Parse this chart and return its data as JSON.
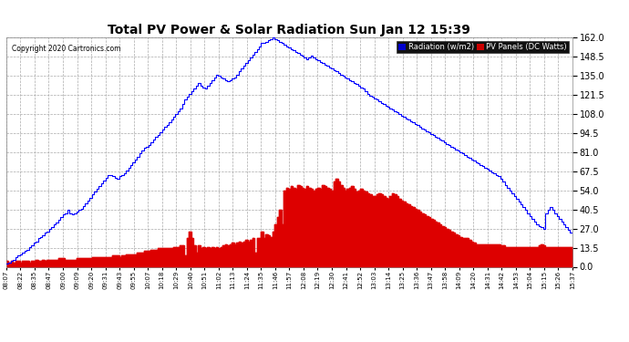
{
  "title": "Total PV Power & Solar Radiation Sun Jan 12 15:39",
  "copyright": "Copyright 2020 Cartronics.com",
  "legend_radiation": "Radiation (w/m2)",
  "legend_pv": "PV Panels (DC Watts)",
  "legend_radiation_bg": "#0000cc",
  "legend_pv_bg": "#cc0000",
  "background_color": "#ffffff",
  "plot_bg_color": "#ffffff",
  "grid_color": "#aaaaaa",
  "radiation_line_color": "#0000ff",
  "pv_fill_color": "#dd0000",
  "y_max": 162.0,
  "y_min": 0.0,
  "y_ticks": [
    0.0,
    13.5,
    27.0,
    40.5,
    54.0,
    67.5,
    81.0,
    94.5,
    108.0,
    121.5,
    135.0,
    148.5,
    162.0
  ],
  "x_labels": [
    "08:07",
    "08:22",
    "08:35",
    "08:47",
    "09:00",
    "09:09",
    "09:20",
    "09:31",
    "09:43",
    "09:55",
    "10:07",
    "10:18",
    "10:29",
    "10:40",
    "10:51",
    "11:02",
    "11:13",
    "11:24",
    "11:35",
    "11:46",
    "11:57",
    "12:08",
    "12:19",
    "12:30",
    "12:41",
    "12:52",
    "13:03",
    "13:14",
    "13:25",
    "13:36",
    "13:47",
    "13:58",
    "14:09",
    "14:20",
    "14:31",
    "14:42",
    "14:53",
    "15:04",
    "15:15",
    "15:26",
    "15:37"
  ],
  "radiation": [
    2,
    3,
    4,
    5,
    7,
    8,
    9,
    10,
    11,
    12,
    14,
    15,
    17,
    18,
    20,
    21,
    22,
    24,
    25,
    27,
    28,
    30,
    31,
    33,
    35,
    37,
    38,
    40,
    38,
    37,
    38,
    39,
    40,
    41,
    43,
    45,
    47,
    49,
    51,
    53,
    55,
    57,
    59,
    61,
    63,
    65,
    65,
    64,
    63,
    62,
    64,
    65,
    66,
    68,
    70,
    72,
    74,
    76,
    78,
    80,
    82,
    84,
    85,
    86,
    88,
    90,
    92,
    93,
    95,
    97,
    99,
    100,
    102,
    104,
    106,
    108,
    110,
    112,
    115,
    118,
    120,
    122,
    124,
    126,
    128,
    130,
    128,
    127,
    126,
    128,
    130,
    132,
    134,
    136,
    135,
    134,
    133,
    132,
    131,
    132,
    133,
    134,
    136,
    138,
    140,
    142,
    144,
    146,
    148,
    150,
    152,
    154,
    156,
    158,
    158,
    159,
    160,
    161,
    162,
    161,
    160,
    159,
    158,
    157,
    156,
    155,
    154,
    153,
    152,
    151,
    150,
    149,
    148,
    147,
    148,
    149,
    148,
    147,
    146,
    145,
    144,
    143,
    142,
    141,
    140,
    139,
    138,
    137,
    136,
    135,
    134,
    133,
    132,
    131,
    130,
    129,
    128,
    127,
    126,
    124,
    122,
    121,
    120,
    119,
    118,
    117,
    116,
    115,
    114,
    113,
    112,
    111,
    110,
    109,
    108,
    107,
    106,
    105,
    104,
    103,
    102,
    101,
    100,
    99,
    98,
    97,
    96,
    95,
    94,
    93,
    92,
    91,
    90,
    89,
    88,
    87,
    86,
    85,
    84,
    83,
    82,
    81,
    80,
    79,
    78,
    77,
    76,
    75,
    74,
    73,
    72,
    71,
    70,
    69,
    68,
    67,
    66,
    65,
    64,
    62,
    60,
    58,
    56,
    54,
    52,
    50,
    48,
    46,
    44,
    42,
    40,
    38,
    36,
    34,
    32,
    30,
    29,
    28,
    27,
    38,
    40,
    42,
    40,
    38,
    36,
    34,
    32,
    30,
    28,
    26,
    24,
    22
  ],
  "pv": [
    4,
    3,
    4,
    3,
    4,
    4,
    3,
    4,
    4,
    4,
    3,
    4,
    4,
    5,
    4,
    4,
    5,
    4,
    5,
    5,
    5,
    5,
    5,
    6,
    6,
    6,
    5,
    5,
    5,
    5,
    5,
    6,
    6,
    6,
    6,
    6,
    6,
    6,
    7,
    7,
    7,
    7,
    7,
    7,
    7,
    7,
    7,
    8,
    8,
    8,
    7,
    8,
    8,
    9,
    9,
    9,
    9,
    9,
    10,
    10,
    10,
    11,
    11,
    11,
    12,
    12,
    12,
    13,
    13,
    13,
    13,
    13,
    13,
    13,
    14,
    14,
    14,
    15,
    15,
    8,
    20,
    25,
    20,
    15,
    10,
    15,
    13,
    14,
    13,
    14,
    13,
    14,
    13,
    14,
    13,
    14,
    15,
    16,
    15,
    16,
    17,
    16,
    17,
    18,
    17,
    18,
    19,
    18,
    19,
    20,
    10,
    20,
    20,
    25,
    20,
    23,
    22,
    21,
    25,
    30,
    35,
    40,
    30,
    54,
    56,
    55,
    57,
    56,
    55,
    58,
    57,
    56,
    55,
    57,
    56,
    55,
    54,
    55,
    56,
    55,
    58,
    57,
    56,
    55,
    54,
    60,
    62,
    60,
    58,
    56,
    54,
    55,
    56,
    57,
    55,
    53,
    54,
    55,
    54,
    53,
    52,
    51,
    50,
    50,
    51,
    52,
    51,
    50,
    49,
    48,
    50,
    52,
    51,
    50,
    48,
    47,
    46,
    45,
    44,
    43,
    42,
    41,
    40,
    39,
    38,
    37,
    36,
    35,
    34,
    33,
    32,
    31,
    30,
    29,
    28,
    27,
    26,
    25,
    24,
    23,
    22,
    21,
    20,
    20,
    20,
    19,
    18,
    17,
    16,
    16,
    16,
    16,
    16,
    16,
    16,
    16,
    16,
    16,
    16,
    15,
    15,
    14,
    14,
    14,
    14,
    14,
    14,
    14,
    14,
    14,
    14,
    14,
    14,
    14,
    14,
    14,
    15,
    16,
    15,
    14,
    14,
    14,
    14,
    14,
    14,
    14,
    14,
    14,
    14
  ]
}
